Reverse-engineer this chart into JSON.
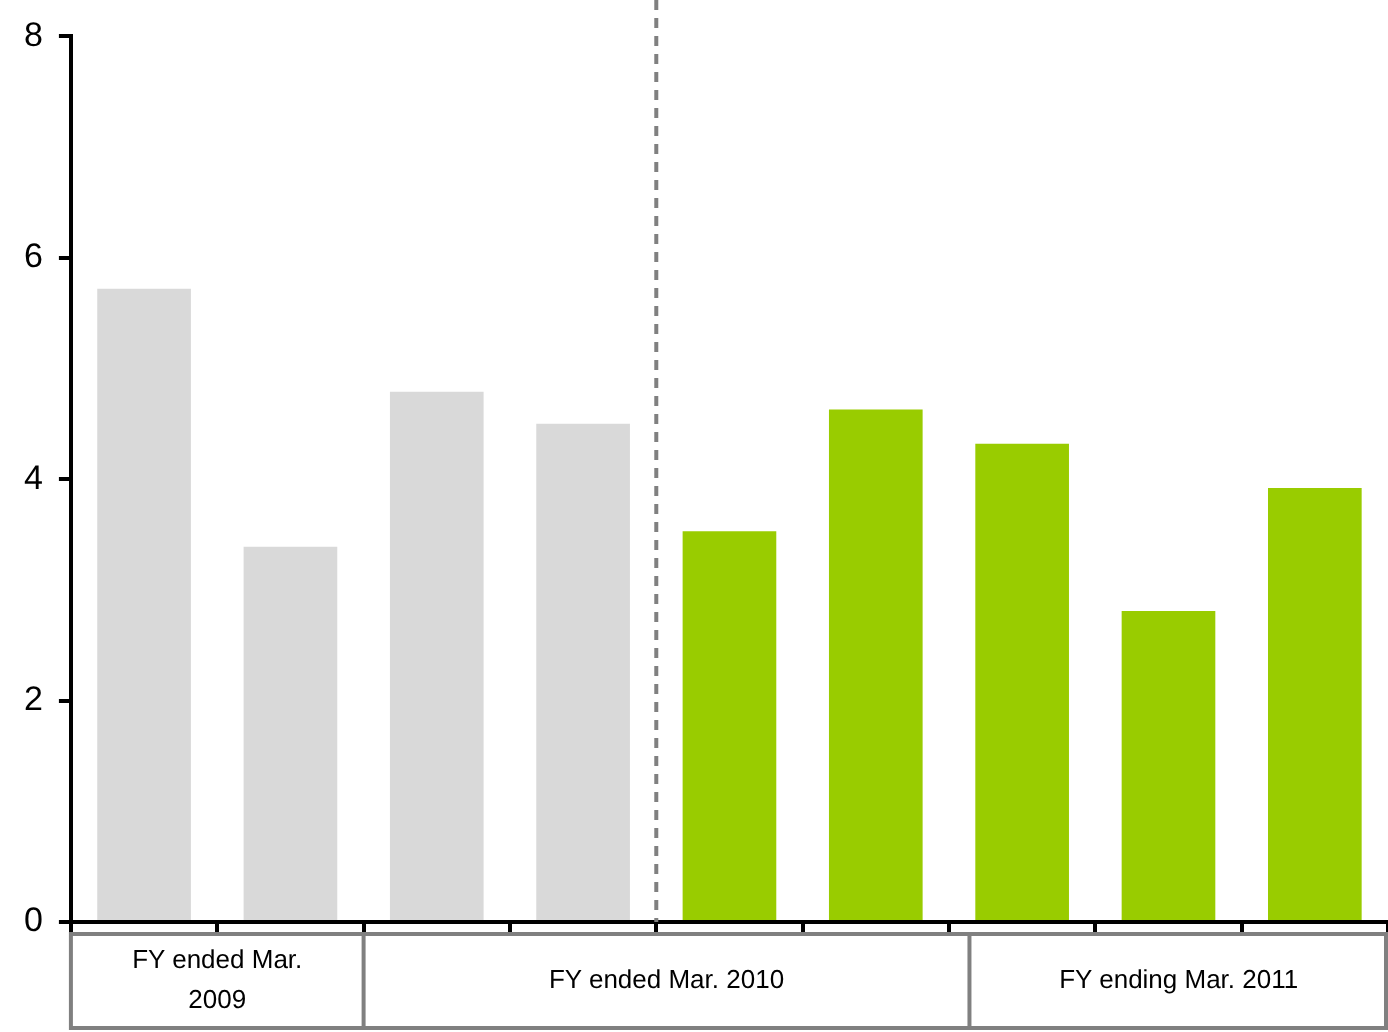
{
  "chart_data": {
    "type": "bar",
    "categories": [
      null,
      null,
      null,
      null,
      null,
      null,
      null,
      null,
      null
    ],
    "values": [
      5.72,
      3.39,
      4.79,
      4.5,
      3.53,
      4.63,
      4.32,
      2.81,
      3.92
    ],
    "colors": [
      "#d9d9d9",
      "#d9d9d9",
      "#d9d9d9",
      "#d9d9d9",
      "#99cc00",
      "#99cc00",
      "#99cc00",
      "#99cc00",
      "#99cc00"
    ],
    "ylim": [
      0,
      8
    ],
    "yticks": [
      0,
      2,
      4,
      6,
      8
    ],
    "grid": false,
    "legend": false,
    "annotations": [
      "FY ended Mar. 2009",
      "FY ended Mar. 2010",
      "FY ending Mar. 2011"
    ]
  }
}
